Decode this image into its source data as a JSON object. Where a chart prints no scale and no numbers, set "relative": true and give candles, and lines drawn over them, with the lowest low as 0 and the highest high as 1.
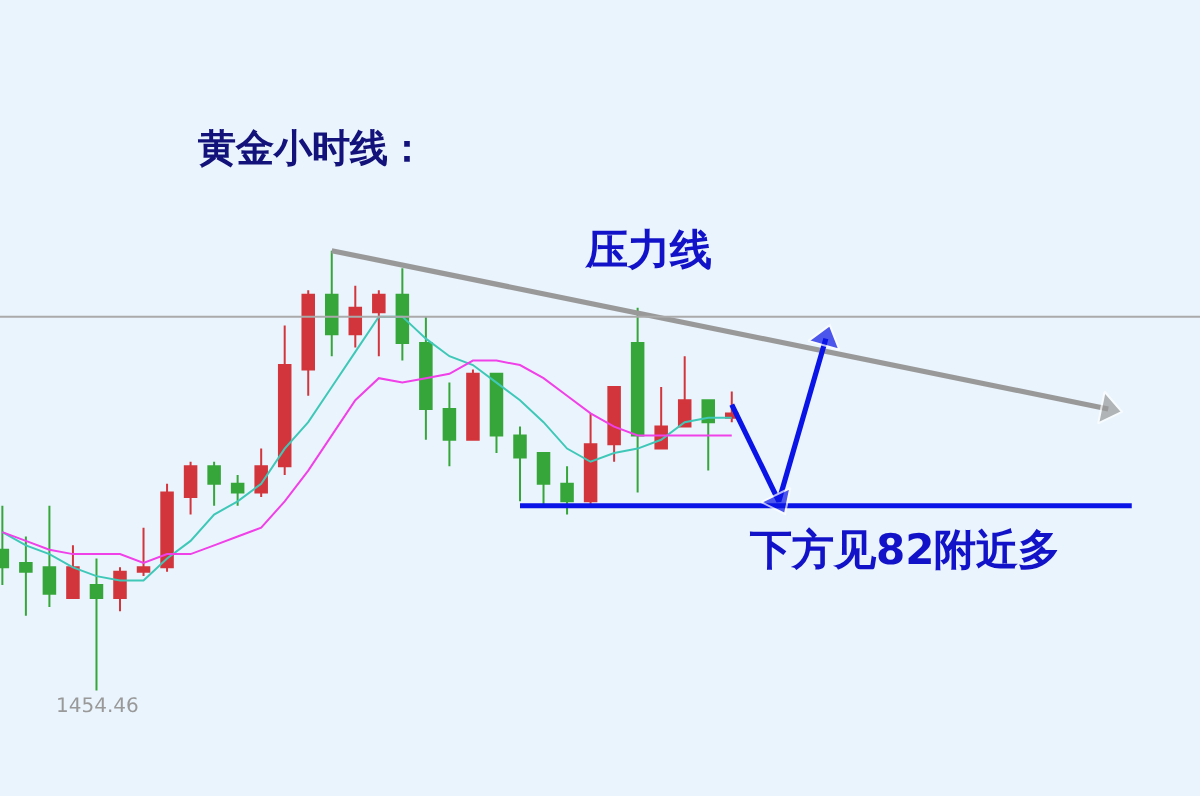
{
  "chart_data": {
    "type": "candlestick",
    "title": "黄金小时线：",
    "relative": true,
    "categories": [
      null,
      null,
      null,
      null,
      null,
      null,
      null,
      null,
      null,
      null,
      null,
      null,
      null,
      null,
      null,
      null,
      null,
      null,
      null,
      null,
      null,
      null,
      null,
      null,
      null,
      null,
      null,
      null,
      null,
      null,
      null,
      null,
      null,
      null,
      null,
      null,
      null,
      null,
      null,
      null,
      null,
      null,
      null,
      null,
      null,
      null,
      null,
      null,
      null,
      null,
      null
    ],
    "colors": [
      "#36a63a",
      "#36a63a",
      "#36a63a",
      "#d2353b",
      "#36a63a",
      "#d2353b",
      "#d2353b",
      "#d2353b",
      "#d2353b",
      "#36a63a",
      "#36a63a",
      "#d2353b",
      "#d2353b",
      "#d2353b",
      "#36a63a",
      "#d2353b",
      "#d2353b",
      "#36a63a",
      "#36a63a",
      "#36a63a",
      "#d2353b",
      "#36a63a",
      "#36a63a",
      "#36a63a",
      "#36a63a",
      "#d2353b",
      "#d2353b",
      "#36a63a",
      "#d2353b",
      "#d2353b",
      "#36a63a",
      "#d2353b",
      null,
      null,
      null,
      null,
      null,
      null,
      null,
      null,
      null,
      null,
      null,
      null,
      null,
      null,
      null,
      null,
      null,
      null,
      null
    ],
    "ohlc": [
      [
        0.32,
        0.42,
        0.24,
        0.28
      ],
      [
        0.29,
        0.35,
        0.17,
        0.27
      ],
      [
        0.28,
        0.42,
        0.19,
        0.22
      ],
      [
        0.21,
        0.33,
        0.21,
        0.28
      ],
      [
        0.24,
        0.3,
        0,
        0.21
      ],
      [
        0.21,
        0.28,
        0.18,
        0.27
      ],
      [
        0.27,
        0.37,
        0.26,
        0.28
      ],
      [
        0.28,
        0.47,
        0.27,
        0.45
      ],
      [
        0.44,
        0.52,
        0.4,
        0.51
      ],
      [
        0.51,
        0.52,
        0.42,
        0.47
      ],
      [
        0.47,
        0.49,
        0.42,
        0.45
      ],
      [
        0.45,
        0.55,
        0.44,
        0.51
      ],
      [
        0.51,
        0.83,
        0.49,
        0.74
      ],
      [
        0.73,
        0.91,
        0.67,
        0.9
      ],
      [
        0.9,
        1,
        0.76,
        0.81
      ],
      [
        0.81,
        0.92,
        0.78,
        0.87
      ],
      [
        0.86,
        0.91,
        0.76,
        0.9
      ],
      [
        0.9,
        0.96,
        0.75,
        0.79
      ],
      [
        0.79,
        0.85,
        0.57,
        0.64
      ],
      [
        0.64,
        0.7,
        0.51,
        0.57
      ],
      [
        0.57,
        0.73,
        0.57,
        0.72
      ],
      [
        0.72,
        0.72,
        0.54,
        0.58
      ],
      [
        0.58,
        0.6,
        0.43,
        0.53
      ],
      [
        0.54,
        0.54,
        0.42,
        0.47
      ],
      [
        0.47,
        0.51,
        0.4,
        0.43
      ],
      [
        0.43,
        0.63,
        0.42,
        0.56
      ],
      [
        0.56,
        0.69,
        0.52,
        0.69
      ],
      [
        0.79,
        0.87,
        0.45,
        0.58
      ],
      [
        0.55,
        0.69,
        0.55,
        0.6
      ],
      [
        0.6,
        0.76,
        0.6,
        0.66
      ],
      [
        0.66,
        0.66,
        0.5,
        0.61
      ],
      [
        0.62,
        0.68,
        0.61,
        0.63
      ],
      null,
      null,
      null,
      null,
      null,
      null,
      null,
      null,
      null,
      null,
      null,
      null,
      null,
      null,
      null,
      null,
      null,
      null,
      null
    ],
    "series": [
      {
        "type": "line",
        "color": "#3fc8b8",
        "values": [
          0.36,
          0.33,
          0.31,
          0.28,
          0.26,
          0.25,
          0.25,
          0.3,
          0.34,
          0.4,
          0.43,
          0.47,
          0.55,
          0.61,
          0.69,
          0.77,
          0.85,
          0.85,
          0.8,
          0.76,
          0.74,
          0.7,
          0.66,
          0.61,
          0.55,
          0.52,
          0.54,
          0.55,
          0.57,
          0.61,
          0.62,
          0.62,
          null,
          null,
          null,
          null,
          null,
          null,
          null,
          null,
          null,
          null,
          null,
          null,
          null,
          null,
          null,
          null,
          null,
          null,
          null
        ]
      },
      {
        "type": "line",
        "color": "#f040e8",
        "values": [
          0.36,
          0.34,
          0.32,
          0.31,
          0.31,
          0.31,
          0.29,
          0.31,
          0.31,
          0.33,
          0.35,
          0.37,
          0.43,
          0.5,
          0.58,
          0.66,
          0.71,
          0.7,
          0.71,
          0.72,
          0.75,
          0.75,
          0.74,
          0.71,
          0.67,
          0.63,
          0.6,
          0.58,
          0.58,
          0.58,
          0.58,
          0.58,
          null,
          null,
          null,
          null,
          null,
          null,
          null,
          null,
          null,
          null,
          null,
          null,
          null,
          null,
          null,
          null,
          null,
          null,
          null
        ]
      },
      {
        "type": "line",
        "color": "#999999",
        "marker": "triangle",
        "values": [
          null,
          null,
          null,
          null,
          null,
          null,
          null,
          null,
          null,
          null,
          null,
          null,
          null,
          null,
          1,
          null,
          null,
          null,
          null,
          null,
          null,
          null,
          null,
          null,
          null,
          null,
          null,
          null,
          null,
          null,
          null,
          null,
          null,
          null,
          null,
          null,
          null,
          null,
          null,
          null,
          null,
          null,
          null,
          null,
          null,
          null,
          null,
          0.64,
          null,
          null,
          null
        ]
      },
      {
        "type": "line",
        "color": "#0a14e6",
        "values": [
          null,
          null,
          null,
          null,
          null,
          null,
          null,
          null,
          null,
          null,
          null,
          null,
          null,
          null,
          null,
          null,
          null,
          null,
          null,
          null,
          null,
          null,
          0.42,
          null,
          null,
          null,
          null,
          null,
          null,
          null,
          null,
          null,
          null,
          null,
          null,
          null,
          null,
          null,
          null,
          null,
          null,
          null,
          null,
          null,
          null,
          null,
          null,
          null,
          0.42,
          null,
          null
        ]
      },
      {
        "type": "line",
        "color": "#0a14e6",
        "marker": "triangle",
        "values": [
          null,
          null,
          null,
          null,
          null,
          null,
          null,
          null,
          null,
          null,
          null,
          null,
          null,
          null,
          null,
          null,
          null,
          null,
          null,
          null,
          null,
          null,
          null,
          null,
          null,
          null,
          null,
          null,
          null,
          null,
          null,
          0.65,
          null,
          0.43,
          null,
          0.8,
          null,
          null,
          null,
          null,
          null,
          null,
          null,
          null,
          null,
          null,
          null,
          null,
          null,
          null,
          null
        ]
      }
    ],
    "ref_lines": [
      {
        "axis": "y",
        "value": 0.85,
        "color": "#aaaaaa"
      }
    ],
    "annotations": [
      "压力线",
      "下方见82附近多",
      {
        "text": "1454.46",
        "y": 0
      }
    ]
  }
}
